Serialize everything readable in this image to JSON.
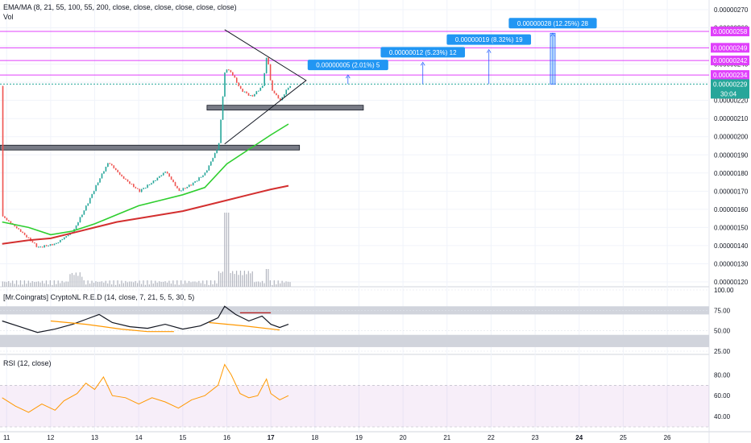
{
  "chart_data": [
    {
      "type": "candlestick",
      "pane": "price",
      "indicator_label": "EMA/MA (8, 21, 55, 100, 55, 200, close, close, close, close, close, close)",
      "volume_label": "Vol",
      "ylim": [
        1.2e-06,
        2.7e-06
      ],
      "yticks": [
        "0.00000270",
        "0.00000260",
        "0.00000250",
        "0.00000240",
        "0.00000230",
        "0.00000220",
        "0.00000210",
        "0.00000200",
        "0.00000190",
        "0.00000180",
        "0.00000170",
        "0.00000160",
        "0.00000150",
        "0.00000140",
        "0.00000130",
        "0.00000120"
      ],
      "ytick_values": [
        2.7e-06,
        2.6e-06,
        2.5e-06,
        2.4e-06,
        2.3e-06,
        2.2e-06,
        2.1e-06,
        2e-06,
        1.9e-06,
        1.8e-06,
        1.7e-06,
        1.6e-06,
        1.5e-06,
        1.4e-06,
        1.3e-06,
        1.2e-06
      ],
      "xlim_day": [
        10.85,
        26.95
      ],
      "xticks": [
        "11",
        "12",
        "13",
        "14",
        "15",
        "16",
        "17",
        "18",
        "19",
        "20",
        "21",
        "22",
        "23",
        "24",
        "25",
        "26"
      ],
      "xtick_values": [
        11,
        12,
        13,
        14,
        15,
        16,
        17,
        18,
        19,
        20,
        21,
        22,
        23,
        24,
        25,
        26
      ],
      "xticks_bold": [
        "17",
        "24"
      ],
      "price_path": [
        [
          10.9,
          1.56e-06
        ],
        [
          11.3,
          1.48e-06
        ],
        [
          11.7,
          1.39e-06
        ],
        [
          12.1,
          1.41e-06
        ],
        [
          12.5,
          1.48e-06
        ],
        [
          12.8,
          1.62e-06
        ],
        [
          13.1,
          1.77e-06
        ],
        [
          13.3,
          1.86e-06
        ],
        [
          13.6,
          1.78e-06
        ],
        [
          14.0,
          1.7e-06
        ],
        [
          14.3,
          1.75e-06
        ],
        [
          14.6,
          1.81e-06
        ],
        [
          14.9,
          1.7e-06
        ],
        [
          15.2,
          1.74e-06
        ],
        [
          15.5,
          1.8e-06
        ],
        [
          15.8,
          1.95e-06
        ],
        [
          15.95,
          2.38e-06
        ],
        [
          16.1,
          2.35e-06
        ],
        [
          16.3,
          2.26e-06
        ],
        [
          16.55,
          2.22e-06
        ],
        [
          16.8,
          2.28e-06
        ],
        [
          16.9,
          2.46e-06
        ],
        [
          17.0,
          2.26e-06
        ],
        [
          17.2,
          2.2e-06
        ],
        [
          17.4,
          2.28e-06
        ]
      ],
      "ema_green": [
        [
          10.9,
          1.53e-06
        ],
        [
          11.5,
          1.5e-06
        ],
        [
          12.0,
          1.46e-06
        ],
        [
          12.5,
          1.48e-06
        ],
        [
          13.0,
          1.52e-06
        ],
        [
          13.5,
          1.57e-06
        ],
        [
          14.0,
          1.62e-06
        ],
        [
          14.5,
          1.65e-06
        ],
        [
          15.0,
          1.68e-06
        ],
        [
          15.5,
          1.72e-06
        ],
        [
          16.0,
          1.85e-06
        ],
        [
          16.5,
          1.93e-06
        ],
        [
          17.0,
          2.01e-06
        ],
        [
          17.4,
          2.07e-06
        ]
      ],
      "ma_red": [
        [
          10.9,
          1.41e-06
        ],
        [
          11.5,
          1.43e-06
        ],
        [
          12.0,
          1.44e-06
        ],
        [
          12.5,
          1.47e-06
        ],
        [
          13.0,
          1.5e-06
        ],
        [
          13.5,
          1.53e-06
        ],
        [
          14.0,
          1.55e-06
        ],
        [
          14.5,
          1.57e-06
        ],
        [
          15.0,
          1.59e-06
        ],
        [
          15.5,
          1.62e-06
        ],
        [
          16.0,
          1.65e-06
        ],
        [
          16.5,
          1.68e-06
        ],
        [
          17.0,
          1.71e-06
        ],
        [
          17.4,
          1.73e-06
        ]
      ],
      "horizontal_levels": [
        {
          "value": 2.58e-06,
          "label": "0.00000258",
          "color": "#e040fb"
        },
        {
          "value": 2.49e-06,
          "label": "0.00000249",
          "color": "#e040fb"
        },
        {
          "value": 2.42e-06,
          "label": "0.00000242",
          "color": "#e040fb"
        },
        {
          "value": 2.34e-06,
          "label": "0.00000234",
          "color": "#e040fb"
        }
      ],
      "current_price": {
        "value": 2.29e-06,
        "label": "0.00000229",
        "countdown": "30:04",
        "color": "#26a69a"
      },
      "support_zones": [
        {
          "value": 2.16e-06,
          "day_from": 15.55,
          "day_to": 19.1
        },
        {
          "value": 1.94e-06,
          "day_from": 10.85,
          "day_to": 17.65
        }
      ],
      "triangle": {
        "apex_day": 17.8,
        "apex_value": 2.31e-06,
        "top_day": 15.95,
        "top_value": 2.59e-06,
        "bottom_day": 15.95,
        "bottom_value": 1.96e-06
      },
      "target_labels": [
        {
          "text": "0.00000005 (2.01%) 5",
          "day": 18.75,
          "from": 2.29e-06,
          "to": 2.34e-06
        },
        {
          "text": "0.00000012 (5.23%) 12",
          "day": 20.45,
          "from": 2.29e-06,
          "to": 2.41e-06
        },
        {
          "text": "0.00000019 (8.32%) 19",
          "day": 21.95,
          "from": 2.29e-06,
          "to": 2.48e-06
        },
        {
          "text": "0.00000028 (12.25%) 28",
          "day": 23.4,
          "from": 2.29e-06,
          "to": 2.57e-06
        }
      ]
    },
    {
      "type": "line",
      "pane": "oscillator",
      "label": "[Mr.Coingrats] CryptoNL R.E.D (14, close, 7, 21, 5, 5, 30, 5)",
      "ylim": [
        25,
        100
      ],
      "yticks": [
        "100.00",
        "75.00",
        "50.00",
        "25.00"
      ],
      "ytick_values": [
        100,
        75,
        50,
        25
      ],
      "upper_band": [
        70,
        80
      ],
      "lower_band": [
        30,
        45
      ],
      "series": [
        {
          "name": "",
          "color": "#131722",
          "points": [
            [
              10.9,
              62
            ],
            [
              11.3,
              55
            ],
            [
              11.7,
              48
            ],
            [
              12.1,
              52
            ],
            [
              12.5,
              58
            ],
            [
              12.8,
              64
            ],
            [
              13.1,
              70
            ],
            [
              13.4,
              60
            ],
            [
              13.8,
              55
            ],
            [
              14.2,
              53
            ],
            [
              14.6,
              58
            ],
            [
              15.0,
              52
            ],
            [
              15.4,
              56
            ],
            [
              15.8,
              66
            ],
            [
              15.95,
              80
            ],
            [
              16.2,
              70
            ],
            [
              16.5,
              62
            ],
            [
              16.8,
              68
            ],
            [
              17.0,
              58
            ],
            [
              17.2,
              54
            ],
            [
              17.4,
              58
            ]
          ]
        },
        {
          "name": "",
          "color": "#ff9800",
          "points": [
            [
              12.0,
              62
            ],
            [
              12.8,
              58
            ],
            [
              13.6,
              52
            ],
            [
              14.2,
              49
            ],
            [
              14.8,
              49
            ]
          ]
        },
        {
          "name": "",
          "color": "#ff9800",
          "points": [
            [
              15.6,
              60
            ],
            [
              16.4,
              56
            ],
            [
              17.2,
              51
            ]
          ]
        },
        {
          "name": "",
          "color": "#b71c1c",
          "points": [
            [
              16.3,
              72
            ],
            [
              17.0,
              72
            ]
          ]
        }
      ]
    },
    {
      "type": "line",
      "pane": "rsi",
      "label": "RSI (12, close)",
      "ylim": [
        30,
        95
      ],
      "yticks": [
        "80.00",
        "60.00",
        "40.00"
      ],
      "ytick_values": [
        80,
        60,
        40
      ],
      "band": [
        30,
        70
      ],
      "series": [
        {
          "name": "",
          "color": "#ff9800",
          "points": [
            [
              10.9,
              58
            ],
            [
              11.2,
              50
            ],
            [
              11.5,
              44
            ],
            [
              11.8,
              52
            ],
            [
              12.1,
              46
            ],
            [
              12.3,
              55
            ],
            [
              12.6,
              62
            ],
            [
              12.8,
              72
            ],
            [
              13.0,
              66
            ],
            [
              13.2,
              78
            ],
            [
              13.4,
              60
            ],
            [
              13.7,
              58
            ],
            [
              14.0,
              52
            ],
            [
              14.3,
              58
            ],
            [
              14.6,
              54
            ],
            [
              14.9,
              48
            ],
            [
              15.2,
              56
            ],
            [
              15.5,
              60
            ],
            [
              15.8,
              70
            ],
            [
              15.95,
              90
            ],
            [
              16.1,
              80
            ],
            [
              16.3,
              62
            ],
            [
              16.5,
              58
            ],
            [
              16.7,
              60
            ],
            [
              16.9,
              76
            ],
            [
              17.0,
              62
            ],
            [
              17.2,
              56
            ],
            [
              17.4,
              60
            ]
          ]
        }
      ]
    }
  ]
}
